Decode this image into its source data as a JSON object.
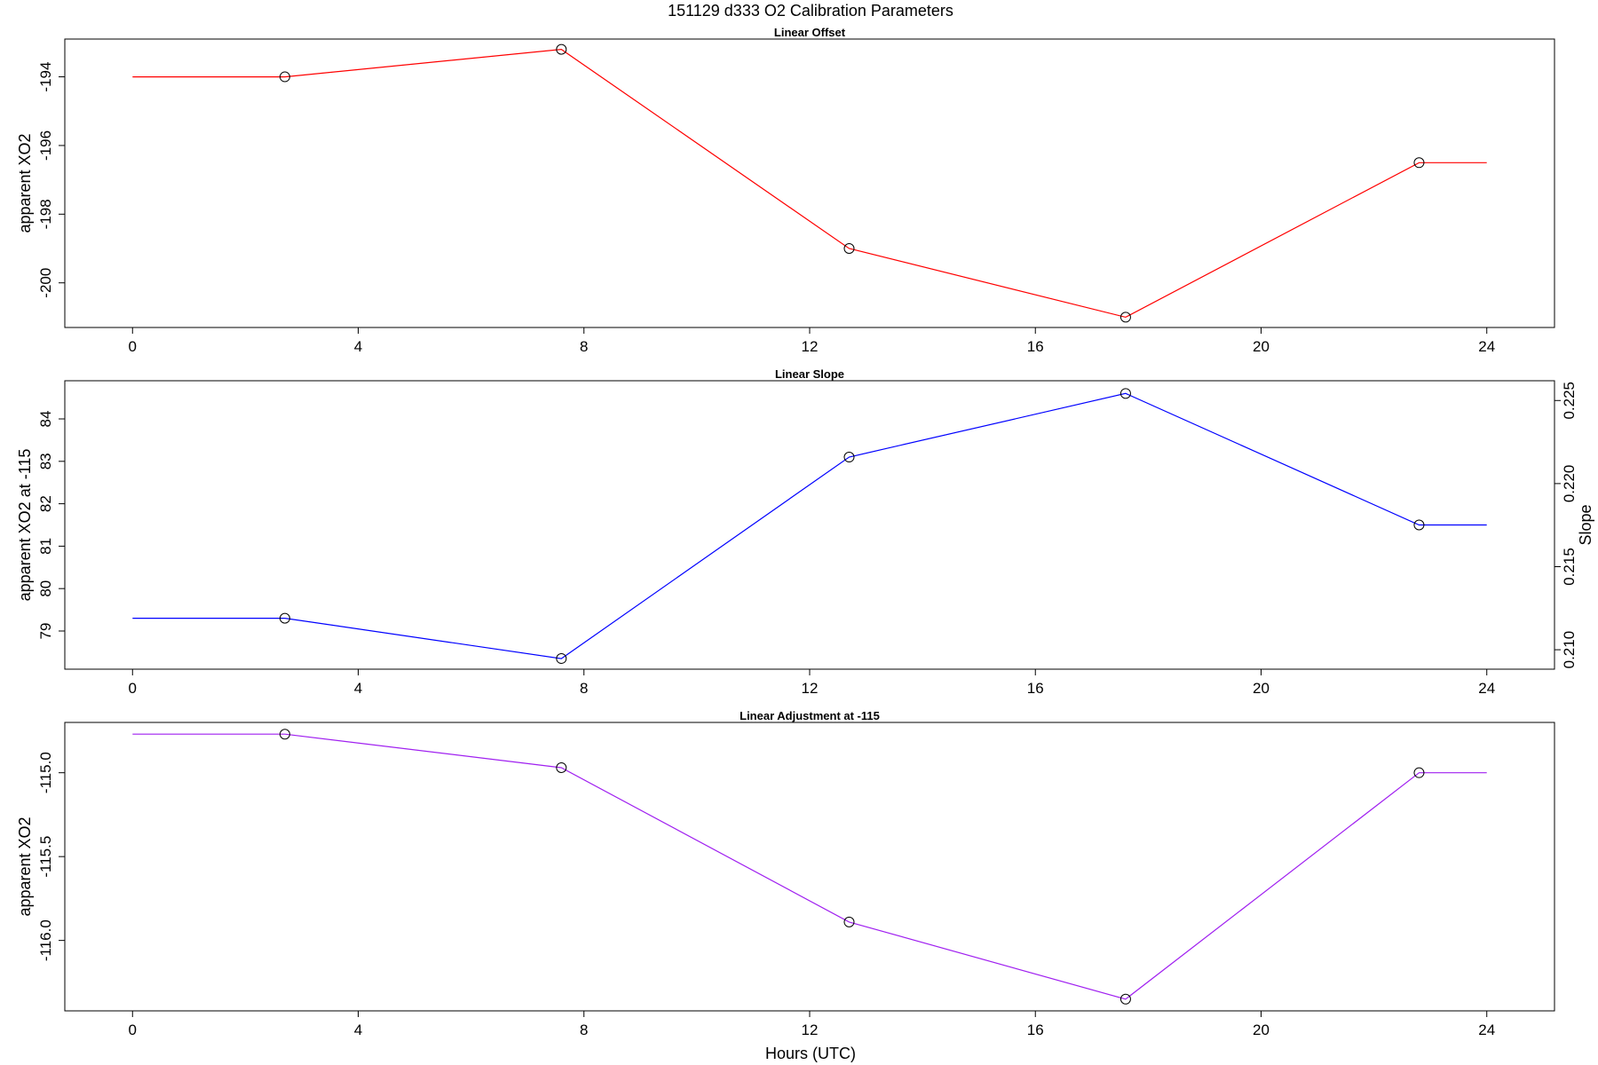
{
  "figure": {
    "title": "151129   d333   O2 Calibration Parameters",
    "xlabel": "Hours (UTC)"
  },
  "chart_data": [
    {
      "type": "line",
      "title": "Linear Offset",
      "ylabel": "apparent XO2",
      "xlabel": "Hours (UTC)",
      "color": "#ff0000",
      "xlim": [
        -1.2,
        25.2
      ],
      "ylim": [
        -201.3,
        -192.9
      ],
      "xticks": [
        0,
        4,
        8,
        12,
        16,
        20,
        24
      ],
      "yticks": [
        -194,
        -196,
        -198,
        -200
      ],
      "points_x": [
        2.7,
        7.6,
        12.7,
        17.6,
        22.8
      ],
      "points_y": [
        -194.0,
        -193.2,
        -199.0,
        -201.0,
        -196.5
      ],
      "line_x": [
        0,
        2.7,
        7.6,
        12.7,
        17.6,
        22.8,
        24
      ],
      "line_y": [
        -194.0,
        -194.0,
        -193.2,
        -199.0,
        -201.0,
        -196.5,
        -196.5
      ],
      "grid": false
    },
    {
      "type": "line",
      "title": "Linear Slope",
      "ylabel": "apparent XO2 at -115",
      "ylabel_right": "Slope",
      "xlabel": "Hours (UTC)",
      "color": "#0000ff",
      "xlim": [
        -1.2,
        25.2
      ],
      "ylim": [
        78.1,
        84.9
      ],
      "ylim_right": [
        0.20883,
        0.22619
      ],
      "xticks": [
        0,
        4,
        8,
        12,
        16,
        20,
        24
      ],
      "yticks": [
        79,
        80,
        81,
        82,
        83,
        84
      ],
      "yticks_right": [
        0.21,
        0.215,
        0.22,
        0.225
      ],
      "yticks_right_labels": [
        "0.210",
        "0.215",
        "0.220",
        "0.225"
      ],
      "points_x": [
        2.7,
        7.6,
        12.7,
        17.6,
        22.8
      ],
      "points_y": [
        79.3,
        78.35,
        83.1,
        84.6,
        81.5
      ],
      "line_x": [
        0,
        2.7,
        7.6,
        12.7,
        17.6,
        22.8,
        24
      ],
      "line_y": [
        79.3,
        79.3,
        78.35,
        83.1,
        84.6,
        81.5,
        81.5
      ],
      "grid": false
    },
    {
      "type": "line",
      "title": "Linear Adjustment at -115",
      "ylabel": "apparent XO2",
      "xlabel": "Hours (UTC)",
      "color": "#a020f0",
      "xlim": [
        -1.2,
        25.2
      ],
      "ylim": [
        -116.42,
        -114.7
      ],
      "xticks": [
        0,
        4,
        8,
        12,
        16,
        20,
        24
      ],
      "yticks": [
        -115.0,
        -115.5,
        -116.0
      ],
      "yticks_labels": [
        "-115.0",
        "-115.5",
        "-116.0"
      ],
      "points_x": [
        2.7,
        7.6,
        12.7,
        17.6,
        22.8
      ],
      "points_y": [
        -114.77,
        -114.97,
        -115.89,
        -116.35,
        -115.0
      ],
      "line_x": [
        0,
        2.7,
        7.6,
        12.7,
        17.6,
        22.8,
        24
      ],
      "line_y": [
        -114.77,
        -114.77,
        -114.97,
        -115.89,
        -116.35,
        -115.0,
        -115.0
      ],
      "grid": false
    }
  ]
}
